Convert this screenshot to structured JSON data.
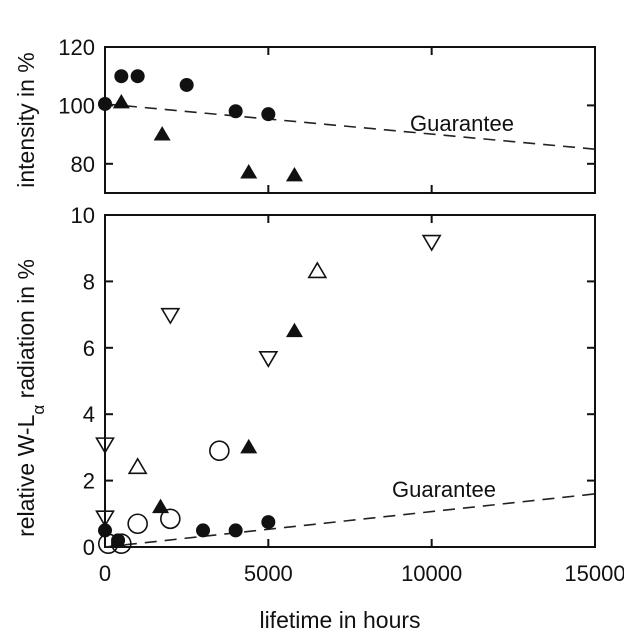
{
  "chart_data": [
    {
      "type": "scatter",
      "panel": "top",
      "ylabel": "intensity in %",
      "xlim": [
        0,
        15000
      ],
      "ylim": [
        70,
        120
      ],
      "yticks": [
        80,
        100,
        120
      ],
      "xticks": [
        0,
        5000,
        10000,
        15000
      ],
      "grid": false,
      "series": [
        {
          "marker": "filled-circle",
          "points": [
            [
              0,
              100.5
            ],
            [
              500,
              110
            ],
            [
              1000,
              110
            ],
            [
              2500,
              107
            ],
            [
              4000,
              98
            ],
            [
              5000,
              97
            ]
          ]
        },
        {
          "marker": "filled-triangle-up",
          "points": [
            [
              500,
              101
            ],
            [
              1750,
              90
            ],
            [
              4400,
              77
            ],
            [
              5800,
              76
            ]
          ]
        }
      ],
      "guarantee_line": {
        "points": [
          [
            0,
            100.5
          ],
          [
            15000,
            85
          ]
        ],
        "style": "dashed"
      },
      "annotations": [
        {
          "text": "Guarantee"
        }
      ]
    },
    {
      "type": "scatter",
      "panel": "bottom",
      "xlabel": "lifetime in hours",
      "ylabel": "relative W-L radiation in %",
      "ylabel_parts": {
        "before": "relative W-L",
        "subscript": "α",
        "after": " radiation in %"
      },
      "xlim": [
        0,
        15000
      ],
      "ylim": [
        0,
        10
      ],
      "yticks": [
        0,
        2,
        4,
        6,
        8,
        10
      ],
      "xticks": [
        0,
        5000,
        10000,
        15000
      ],
      "xticklabels": [
        "0",
        "5000",
        "10000",
        "15000"
      ],
      "grid": false,
      "series": [
        {
          "marker": "filled-circle",
          "points": [
            [
              0,
              0.5
            ],
            [
              400,
              0.2
            ],
            [
              3000,
              0.5
            ],
            [
              4000,
              0.5
            ],
            [
              5000,
              0.75
            ]
          ]
        },
        {
          "marker": "filled-triangle-up",
          "points": [
            [
              400,
              0.15
            ],
            [
              1700,
              1.2
            ],
            [
              4400,
              3.0
            ],
            [
              5800,
              6.5
            ]
          ]
        },
        {
          "marker": "open-circle",
          "points": [
            [
              100,
              0.1
            ],
            [
              500,
              0.1
            ],
            [
              1000,
              0.7
            ],
            [
              2000,
              0.85
            ],
            [
              3500,
              2.9
            ]
          ]
        },
        {
          "marker": "open-triangle-up",
          "points": [
            [
              1000,
              2.4
            ],
            [
              6500,
              8.3
            ]
          ]
        },
        {
          "marker": "open-triangle-down",
          "points": [
            [
              0,
              3.1
            ],
            [
              0,
              0.9
            ],
            [
              2000,
              7.0
            ],
            [
              5000,
              5.7
            ],
            [
              10000,
              9.2
            ]
          ]
        }
      ],
      "guarantee_line": {
        "points": [
          [
            0,
            0
          ],
          [
            15000,
            1.6
          ]
        ],
        "style": "dashed"
      },
      "annotations": [
        {
          "text": "Guarantee"
        }
      ]
    }
  ]
}
